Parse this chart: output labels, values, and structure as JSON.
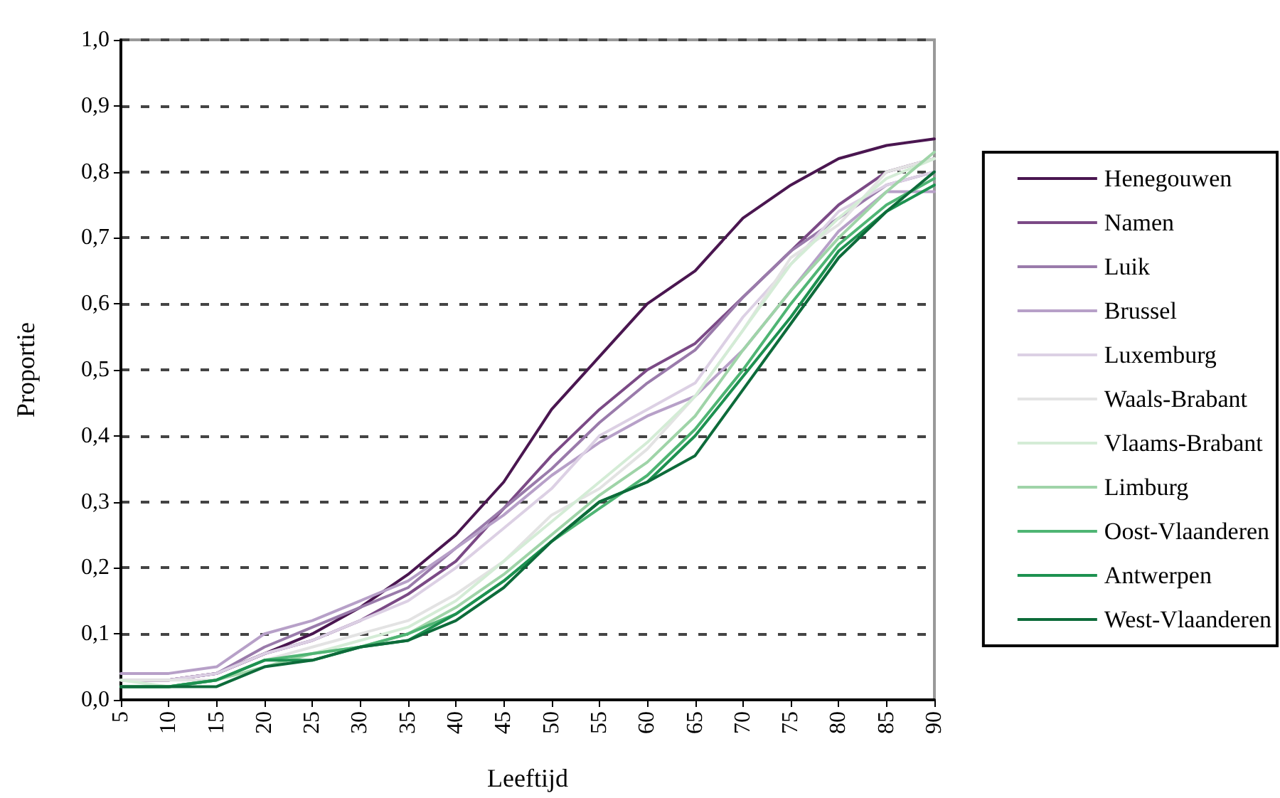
{
  "chart_data": {
    "type": "line",
    "xlabel": "Leeftijd",
    "ylabel": "Proportie",
    "x": [
      5,
      10,
      15,
      20,
      25,
      30,
      35,
      40,
      45,
      50,
      55,
      60,
      65,
      70,
      75,
      80,
      85,
      90
    ],
    "series": [
      {
        "name": "Henegouwen",
        "color": "#4a1650",
        "values": [
          0.03,
          0.03,
          0.04,
          0.07,
          0.1,
          0.14,
          0.19,
          0.25,
          0.33,
          0.44,
          0.52,
          0.6,
          0.65,
          0.73,
          0.78,
          0.82,
          0.84,
          0.85
        ]
      },
      {
        "name": "Namen",
        "color": "#7b4a86",
        "values": [
          0.03,
          0.03,
          0.04,
          0.07,
          0.09,
          0.12,
          0.16,
          0.21,
          0.29,
          0.37,
          0.44,
          0.5,
          0.54,
          0.61,
          0.68,
          0.75,
          0.8,
          0.82
        ]
      },
      {
        "name": "Luik",
        "color": "#9a7bab",
        "values": [
          0.03,
          0.03,
          0.04,
          0.08,
          0.11,
          0.14,
          0.17,
          0.23,
          0.29,
          0.35,
          0.42,
          0.48,
          0.53,
          0.61,
          0.68,
          0.73,
          0.78,
          0.8
        ]
      },
      {
        "name": "Brussel",
        "color": "#b7a0c8",
        "values": [
          0.04,
          0.04,
          0.05,
          0.1,
          0.12,
          0.15,
          0.18,
          0.23,
          0.28,
          0.34,
          0.39,
          0.43,
          0.46,
          0.53,
          0.62,
          0.71,
          0.77,
          0.77
        ]
      },
      {
        "name": "Luxemburg",
        "color": "#dcd0e4",
        "values": [
          0.03,
          0.03,
          0.04,
          0.07,
          0.09,
          0.12,
          0.15,
          0.2,
          0.26,
          0.32,
          0.4,
          0.44,
          0.48,
          0.58,
          0.66,
          0.74,
          0.78,
          0.8
        ]
      },
      {
        "name": "Waals-Brabant",
        "color": "#e3e3e3",
        "values": [
          0.03,
          0.03,
          0.03,
          0.06,
          0.08,
          0.1,
          0.12,
          0.16,
          0.21,
          0.28,
          0.32,
          0.38,
          0.46,
          0.56,
          0.67,
          0.72,
          0.8,
          0.82
        ]
      },
      {
        "name": "Vlaams-Brabant",
        "color": "#d4ecd6",
        "values": [
          0.03,
          0.02,
          0.03,
          0.06,
          0.07,
          0.09,
          0.11,
          0.15,
          0.21,
          0.27,
          0.33,
          0.39,
          0.46,
          0.56,
          0.66,
          0.73,
          0.79,
          0.82
        ]
      },
      {
        "name": "Limburg",
        "color": "#9fd4a8",
        "values": [
          0.02,
          0.02,
          0.03,
          0.05,
          0.07,
          0.08,
          0.1,
          0.14,
          0.19,
          0.25,
          0.31,
          0.36,
          0.43,
          0.53,
          0.62,
          0.7,
          0.77,
          0.83
        ]
      },
      {
        "name": "Oost-Vlaanderen",
        "color": "#4fb574",
        "values": [
          0.02,
          0.02,
          0.03,
          0.06,
          0.07,
          0.08,
          0.1,
          0.13,
          0.18,
          0.24,
          0.29,
          0.34,
          0.41,
          0.5,
          0.6,
          0.69,
          0.75,
          0.79
        ]
      },
      {
        "name": "Antwerpen",
        "color": "#1d9150",
        "values": [
          0.02,
          0.02,
          0.03,
          0.06,
          0.06,
          0.08,
          0.09,
          0.13,
          0.18,
          0.24,
          0.3,
          0.33,
          0.4,
          0.49,
          0.58,
          0.68,
          0.74,
          0.78
        ]
      },
      {
        "name": "West-Vlaanderen",
        "color": "#0d6b3a",
        "values": [
          0.02,
          0.02,
          0.02,
          0.05,
          0.06,
          0.08,
          0.09,
          0.12,
          0.17,
          0.24,
          0.3,
          0.33,
          0.37,
          0.47,
          0.57,
          0.67,
          0.74,
          0.8
        ]
      }
    ],
    "xlim": [
      5,
      90
    ],
    "xticks": [
      5,
      10,
      15,
      20,
      25,
      30,
      35,
      40,
      45,
      50,
      55,
      60,
      65,
      70,
      75,
      80,
      85,
      90
    ],
    "ylim": [
      0,
      1
    ],
    "yticks": [
      {
        "value": 0,
        "label": "0,0"
      },
      {
        "value": 0.1,
        "label": "0,1"
      },
      {
        "value": 0.2,
        "label": "0,2"
      },
      {
        "value": 0.3,
        "label": "0,3"
      },
      {
        "value": 0.4,
        "label": "0,4"
      },
      {
        "value": 0.5,
        "label": "0,5"
      },
      {
        "value": 0.6,
        "label": "0,6"
      },
      {
        "value": 0.7,
        "label": "0,7"
      },
      {
        "value": 0.8,
        "label": "0,8"
      },
      {
        "value": 0.9,
        "label": "0,9"
      },
      {
        "value": 1,
        "label": "1,0"
      }
    ],
    "grid": "y",
    "legend": "right",
    "marker": "none",
    "line_style": "solid"
  }
}
